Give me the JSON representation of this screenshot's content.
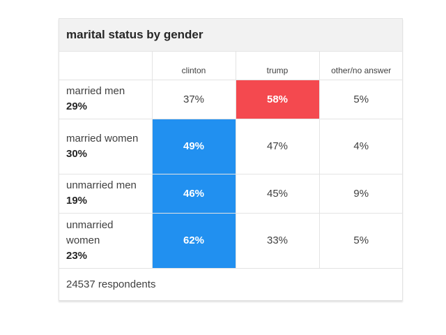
{
  "title": "marital status by gender",
  "footer": "24537 respondents",
  "colors": {
    "clinton": "#2190f0",
    "trump": "#f4494f"
  },
  "chart_data": {
    "type": "table",
    "title": "marital status by gender",
    "columns": [
      "clinton",
      "trump",
      "other/no answer"
    ],
    "rows": [
      {
        "group": "married men",
        "share": "29%",
        "values": [
          "37%",
          "58%",
          "5%"
        ],
        "winner": 1
      },
      {
        "group": "married women",
        "share": "30%",
        "values": [
          "49%",
          "47%",
          "4%"
        ],
        "winner": 0
      },
      {
        "group": "unmarried men",
        "share": "19%",
        "values": [
          "46%",
          "45%",
          "9%"
        ],
        "winner": 0
      },
      {
        "group": "unmarried women",
        "share": "23%",
        "values": [
          "62%",
          "33%",
          "5%"
        ],
        "winner": 0
      }
    ],
    "respondents": "24537 respondents"
  }
}
